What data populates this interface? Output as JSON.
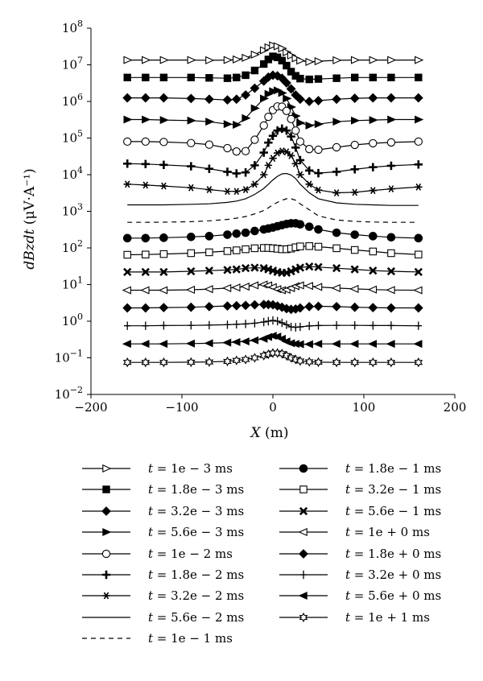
{
  "chart_data": {
    "type": "line",
    "xlabel": "X (m)",
    "ylabel": "dBzdt (μV·A⁻¹)",
    "xlim": [
      -200,
      200
    ],
    "ylim_log10": [
      -2,
      8
    ],
    "yscale": "log",
    "x_ticks": [
      "−200",
      "−100",
      "0",
      "100",
      "200"
    ],
    "y_tick_exponents": [
      "8",
      "7",
      "6",
      "5",
      "4",
      "3",
      "2",
      "1",
      "0",
      "−1",
      "−2"
    ],
    "x_points": [
      -160,
      -140,
      -120,
      -90,
      -70,
      -50,
      -40,
      -30,
      -20,
      -10,
      -5,
      0,
      5,
      10,
      15,
      20,
      25,
      30,
      40,
      50,
      70,
      90,
      110,
      130,
      160
    ],
    "series": [
      {
        "name": "t = 1e − 3 ms",
        "marker": "tri-right-open",
        "values": [
          13500000.0,
          13500000.0,
          13500000.0,
          13500000.0,
          13300000.0,
          13500000.0,
          14000000.0,
          15500000.0,
          19000000.0,
          25000000.0,
          30000000.0,
          34000000.0,
          32000000.0,
          28000000.0,
          22000000.0,
          18000000.0,
          15000000.0,
          13000000.0,
          12000000.0,
          12500000.0,
          13300000.0,
          13500000.0,
          13500000.0,
          13500000.0,
          13500000.0
        ]
      },
      {
        "name": "t = 1.8e − 3 ms",
        "marker": "square-filled",
        "values": [
          4500000.0,
          4500000.0,
          4500000.0,
          4500000.0,
          4400000.0,
          4300000.0,
          4500000.0,
          5200000.0,
          7000000.0,
          10500000.0,
          14000000.0,
          17000000.0,
          16000000.0,
          13000000.0,
          9500000.0,
          6500000.0,
          5000000.0,
          4200000.0,
          4000000.0,
          4100000.0,
          4300000.0,
          4500000.0,
          4500000.0,
          4500000.0,
          4500000.0
        ]
      },
      {
        "name": "t = 3.2e − 3 ms",
        "marker": "diamond-filled",
        "values": [
          1250000.0,
          1250000.0,
          1250000.0,
          1200000.0,
          1150000.0,
          1100000.0,
          1150000.0,
          1500000.0,
          2300000.0,
          3600000.0,
          4600000.0,
          5200000.0,
          5000000.0,
          4300000.0,
          3200000.0,
          2200000.0,
          1500000.0,
          1150000.0,
          1000000.0,
          1050000.0,
          1150000.0,
          1220000.0,
          1250000.0,
          1250000.0,
          1250000.0
        ]
      },
      {
        "name": "t = 5.6e − 3 ms",
        "marker": "tri-right-filled",
        "values": [
          320000.0,
          320000.0,
          310000.0,
          300000.0,
          280000.0,
          240000.0,
          230000.0,
          350000.0,
          650000.0,
          1200000.0,
          1600000.0,
          1900000.0,
          2000000.0,
          1700000.0,
          1200000.0,
          700000.0,
          400000.0,
          260000.0,
          220000.0,
          240000.0,
          280000.0,
          300000.0,
          310000.0,
          320000.0,
          320000.0
        ]
      },
      {
        "name": "t = 1e − 2 ms",
        "marker": "circle-open",
        "values": [
          80000.0,
          80000.0,
          78000.0,
          73000.0,
          66000.0,
          53000.0,
          43000.0,
          44000.0,
          90000.0,
          220000.0,
          380000.0,
          580000.0,
          730000.0,
          720000.0,
          550000.0,
          330000.0,
          160000.0,
          80000.0,
          50000.0,
          48000.0,
          56000.0,
          65000.0,
          72000.0,
          76000.0,
          80000.0
        ]
      },
      {
        "name": "t = 1.8e − 2 ms",
        "marker": "plus-bold",
        "values": [
          20000.0,
          19500.0,
          18500.0,
          17000.0,
          14500.0,
          12000.0,
          10800.0,
          11500.0,
          18000.0,
          40000.0,
          75000.0,
          115000.0,
          160000.0,
          180000.0,
          160000.0,
          110000.0,
          55000.0,
          25000.0,
          13000.0,
          11000.0,
          12000.0,
          14000.0,
          16000.0,
          17500.0,
          19000.0
        ]
      },
      {
        "name": "t = 3.2e − 2 ms",
        "marker": "asterisk",
        "values": [
          5500.0,
          5200.0,
          4900.0,
          4400.0,
          3900.0,
          3500.0,
          3500.0,
          3900.0,
          5500.0,
          10000.0,
          18000.0,
          28000.0,
          39000.0,
          44000.0,
          42000.0,
          33000.0,
          20000.0,
          10000.0,
          5500.0,
          3800.0,
          3200.0,
          3300.0,
          3700.0,
          4100.0,
          4600.0
        ]
      },
      {
        "name": "t = 5.6e − 2 ms",
        "marker": "none",
        "dash": "solid",
        "values": [
          1500.0,
          1500.0,
          1500.0,
          1550.0,
          1600.0,
          1750.0,
          1900.0,
          2200.0,
          2900.0,
          4200.0,
          5500.0,
          7200.0,
          9000.0,
          10500.0,
          10800.0,
          9800.0,
          7800.0,
          5500.0,
          3200.0,
          2200.0,
          1700.0,
          1550.0,
          1500.0,
          1450.0,
          1450.0
        ]
      },
      {
        "name": "t = 1e − 1 ms",
        "marker": "none",
        "dash": "dashed",
        "values": [
          500,
          500,
          505,
          520,
          550,
          600,
          650,
          720,
          850,
          1050,
          1250,
          1500,
          1750,
          2000,
          2200,
          2200,
          2000,
          1600,
          1100,
          750,
          580,
          530,
          510,
          500,
          500
        ]
      },
      {
        "name": "t = 1.8e − 1 ms",
        "marker": "circle-filled",
        "values": [
          185,
          185,
          190,
          200,
          210,
          230,
          245,
          260,
          290,
          320,
          340,
          360,
          390,
          420,
          450,
          470,
          470,
          440,
          380,
          320,
          260,
          230,
          210,
          195,
          185
        ]
      },
      {
        "name": "t = 3.2e − 1 ms",
        "marker": "square-open",
        "values": [
          65,
          66,
          68,
          72,
          76,
          82,
          86,
          92,
          98,
          100,
          100,
          98,
          95,
          92,
          92,
          96,
          104,
          110,
          112,
          108,
          98,
          88,
          80,
          72,
          66
        ]
      },
      {
        "name": "t = 5.6e − 1 ms",
        "marker": "x-bold",
        "values": [
          22,
          22,
          22,
          23,
          24,
          25,
          26,
          28,
          29,
          28,
          26,
          24,
          22,
          21,
          21,
          23,
          26,
          29,
          31,
          30,
          28,
          26,
          24,
          23,
          22
        ]
      },
      {
        "name": "t = 1e + 0 ms",
        "marker": "tri-left-open",
        "values": [
          7,
          7,
          7,
          7.2,
          7.5,
          8,
          8.3,
          8.8,
          9.5,
          10,
          9.5,
          8.5,
          7.5,
          7.0,
          7.2,
          8.0,
          9.0,
          9.5,
          9.2,
          8.6,
          8.0,
          7.6,
          7.3,
          7.1,
          7
        ]
      },
      {
        "name": "t = 1.8e + 0 ms",
        "marker": "diamond-filled",
        "values": [
          2.3,
          2.3,
          2.35,
          2.4,
          2.5,
          2.6,
          2.65,
          2.7,
          2.8,
          2.85,
          2.85,
          2.8,
          2.6,
          2.4,
          2.2,
          2.1,
          2.15,
          2.3,
          2.5,
          2.55,
          2.5,
          2.4,
          2.35,
          2.3,
          2.3
        ]
      },
      {
        "name": "t = 3.2e + 0 ms",
        "marker": "plus-thin",
        "values": [
          0.75,
          0.75,
          0.76,
          0.77,
          0.78,
          0.8,
          0.82,
          0.84,
          0.88,
          0.95,
          1.0,
          1.05,
          1.0,
          0.9,
          0.8,
          0.7,
          0.68,
          0.7,
          0.74,
          0.76,
          0.77,
          0.77,
          0.76,
          0.76,
          0.75
        ]
      },
      {
        "name": "t = 5.6e + 0 ms",
        "marker": "tri-left-filled",
        "values": [
          0.24,
          0.24,
          0.24,
          0.245,
          0.25,
          0.26,
          0.27,
          0.28,
          0.3,
          0.33,
          0.37,
          0.4,
          0.38,
          0.33,
          0.28,
          0.25,
          0.24,
          0.235,
          0.235,
          0.24,
          0.24,
          0.24,
          0.24,
          0.24,
          0.24
        ]
      },
      {
        "name": "t = 1e + 1 ms",
        "marker": "star-open",
        "values": [
          0.075,
          0.075,
          0.075,
          0.076,
          0.077,
          0.08,
          0.085,
          0.09,
          0.1,
          0.115,
          0.125,
          0.135,
          0.135,
          0.13,
          0.115,
          0.1,
          0.09,
          0.082,
          0.078,
          0.076,
          0.075,
          0.075,
          0.075,
          0.075,
          0.075
        ]
      }
    ]
  },
  "legend": {
    "left": [
      {
        "var": "t",
        "text": " = 1e − 3 ms"
      },
      {
        "var": "t",
        "text": " = 1.8e − 3 ms"
      },
      {
        "var": "t",
        "text": " = 3.2e − 3 ms"
      },
      {
        "var": "t",
        "text": " = 5.6e − 3 ms"
      },
      {
        "var": "t",
        "text": " = 1e − 2 ms"
      },
      {
        "var": "t",
        "text": " = 1.8e − 2 ms"
      },
      {
        "var": "t",
        "text": " = 3.2e − 2 ms"
      },
      {
        "var": "t",
        "text": " = 5.6e − 2 ms"
      },
      {
        "var": "t",
        "text": " = 1e − 1 ms"
      }
    ],
    "right": [
      {
        "var": "t",
        "text": " = 1.8e − 1 ms"
      },
      {
        "var": "t",
        "text": " = 3.2e − 1 ms"
      },
      {
        "var": "t",
        "text": " = 5.6e − 1 ms"
      },
      {
        "var": "t",
        "text": " = 1e + 0 ms"
      },
      {
        "var": "t",
        "text": " = 1.8e + 0 ms"
      },
      {
        "var": "t",
        "text": " = 3.2e + 0 ms"
      },
      {
        "var": "t",
        "text": " = 5.6e + 0 ms"
      },
      {
        "var": "t",
        "text": " = 1e + 1 ms"
      }
    ]
  }
}
